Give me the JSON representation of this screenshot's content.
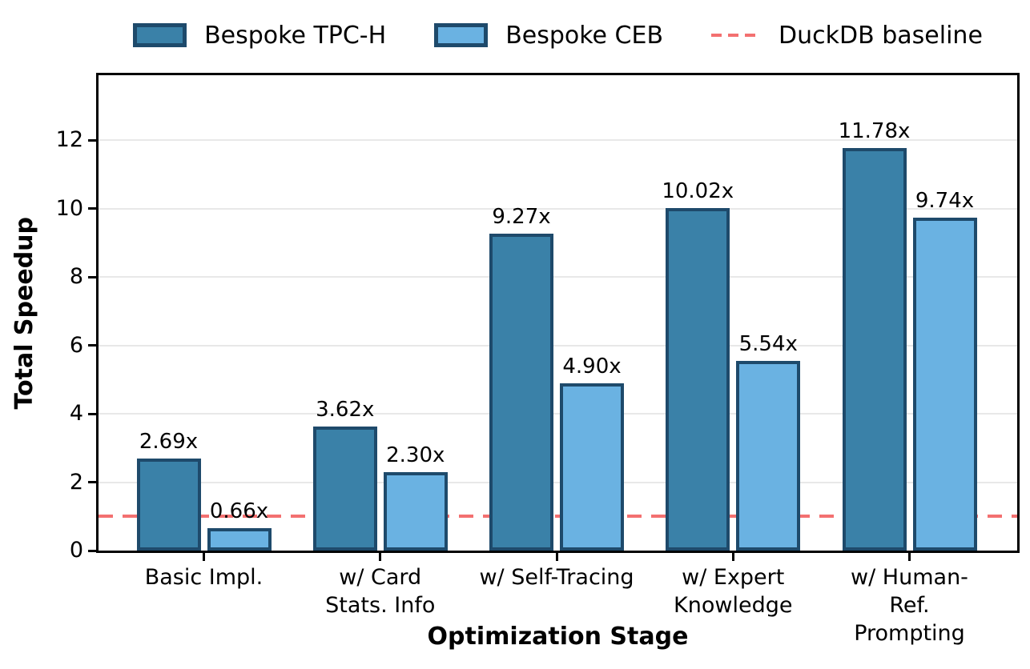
{
  "legend": {
    "items": [
      {
        "label": "Bespoke TPC-H",
        "swatch": "dark-blue-patch"
      },
      {
        "label": "Bespoke CEB",
        "swatch": "light-blue-patch"
      },
      {
        "label": "DuckDB baseline",
        "swatch": "red-dashed-line"
      }
    ]
  },
  "chart_data": {
    "type": "bar",
    "title": "",
    "xlabel": "Optimization Stage",
    "ylabel": "Total Speedup",
    "categories": [
      "Basic Impl.",
      "w/ Card\nStats. Info",
      "w/ Self-Tracing",
      "w/ Expert\nKnowledge",
      "w/ Human-Ref.\nPrompting"
    ],
    "series": [
      {
        "name": "Bespoke TPC-H",
        "color": "#3a81a8",
        "edge_color": "#1e4a6b",
        "values": [
          2.69,
          3.62,
          9.27,
          10.02,
          11.78
        ],
        "bar_labels": [
          "2.69x",
          "3.62x",
          "9.27x",
          "10.02x",
          "11.78x"
        ]
      },
      {
        "name": "Bespoke CEB",
        "color": "#6ab2e2",
        "edge_color": "#1e4a6b",
        "values": [
          0.66,
          2.3,
          4.9,
          5.54,
          9.74
        ],
        "bar_labels": [
          "0.66x",
          "2.30x",
          "4.90x",
          "5.54x",
          "9.74x"
        ]
      }
    ],
    "baseline": {
      "name": "DuckDB baseline",
      "value": 1.0,
      "color": "#f37070",
      "line_style": "dashed"
    },
    "yticks": [
      0,
      2,
      4,
      6,
      8,
      10,
      12
    ],
    "ytick_labels": [
      "0",
      "2",
      "4",
      "6",
      "8",
      "10",
      "12"
    ],
    "ylim": [
      0,
      13.9
    ],
    "grid": {
      "horizontal": true,
      "color": "#e8e8e8"
    },
    "legend_position": "top-center",
    "text_color": "#000000",
    "background_color": "#ffffff"
  }
}
